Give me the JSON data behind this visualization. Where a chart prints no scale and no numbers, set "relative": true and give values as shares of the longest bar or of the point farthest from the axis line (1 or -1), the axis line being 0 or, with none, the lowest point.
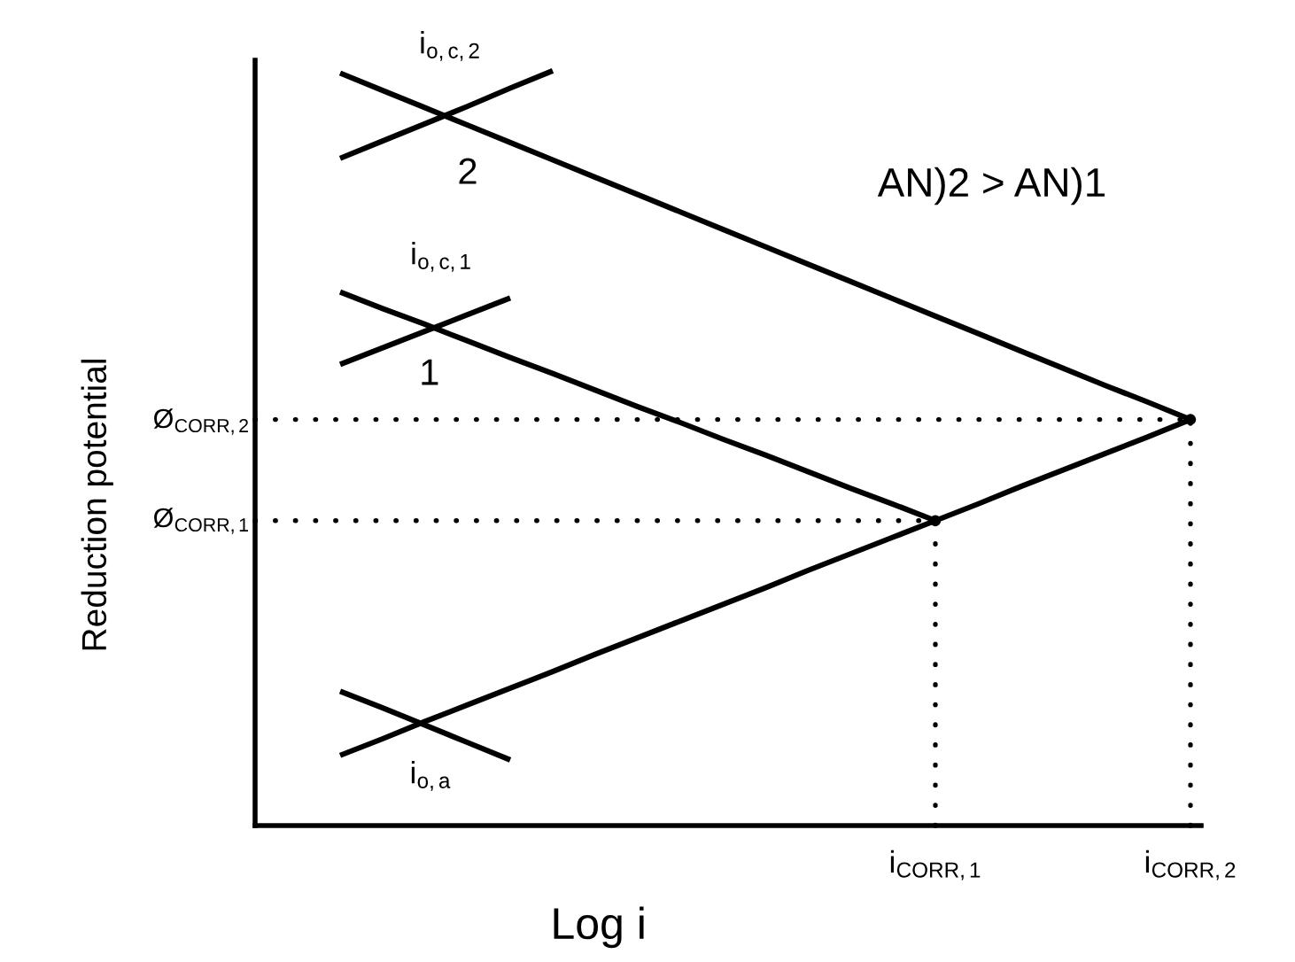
{
  "chart_data": {
    "type": "line",
    "relative": true,
    "xlabel": "Log i",
    "ylabel": "Reduction potential",
    "categories": [
      null,
      null,
      null,
      null,
      null,
      null,
      null,
      null,
      null,
      null,
      null,
      null,
      null,
      null,
      null,
      null,
      "i$_{CORR,1}$",
      null,
      null,
      null,
      null,
      null,
      "i$_{CORR,2}$"
    ],
    "series": [
      {
        "color": "#000000",
        "line_style": "solid",
        "values": [
          null,
          null,
          0.093,
          0.115,
          0.138,
          0.16,
          0.182,
          0.204,
          0.227,
          0.249,
          0.271,
          0.293,
          0.315,
          0.338,
          0.36,
          0.382,
          0.404,
          0.426,
          0.449,
          0.471,
          0.493,
          0.515,
          0.538
        ]
      },
      {
        "name": "2",
        "color": "#000000",
        "line_style": "solid",
        "values": [
          null,
          null,
          0.997,
          0.974,
          0.951,
          0.928,
          0.905,
          0.882,
          0.859,
          0.836,
          0.813,
          0.79,
          0.767,
          0.744,
          0.721,
          0.698,
          0.675,
          0.652,
          0.629,
          0.606,
          0.583,
          0.561,
          0.538
        ]
      },
      {
        "name": "1",
        "color": "#000000",
        "line_style": "solid",
        "values": [
          null,
          null,
          0.707,
          0.685,
          0.664,
          0.642,
          0.62,
          0.599,
          0.577,
          0.555,
          0.534,
          0.512,
          0.491,
          0.469,
          0.447,
          0.426,
          0.404,
          null,
          null,
          null,
          null,
          null,
          null
        ]
      },
      {
        "color": "#000000",
        "line_style": "solid",
        "values": [
          null,
          null,
          0.884,
          0.907,
          0.93,
          0.953,
          0.977,
          1.0,
          null,
          null,
          null,
          null,
          null,
          null,
          null,
          null,
          null,
          null,
          null,
          null,
          null,
          null,
          null
        ]
      },
      {
        "color": "#000000",
        "line_style": "solid",
        "values": [
          null,
          null,
          0.611,
          0.633,
          0.655,
          0.677,
          0.699,
          null,
          null,
          null,
          null,
          null,
          null,
          null,
          null,
          null,
          null,
          null,
          null,
          null,
          null,
          null,
          null
        ]
      },
      {
        "color": "#000000",
        "line_style": "solid",
        "values": [
          null,
          null,
          0.178,
          0.156,
          0.133,
          0.11,
          0.087,
          null,
          null,
          null,
          null,
          null,
          null,
          null,
          null,
          null,
          null,
          null,
          null,
          null,
          null,
          null,
          null
        ]
      },
      {
        "color": "#000000",
        "line_style": "dotted",
        "values": [
          0.538,
          0.538,
          0.538,
          0.538,
          0.538,
          0.538,
          0.538,
          0.538,
          0.538,
          0.538,
          0.538,
          0.538,
          0.538,
          0.538,
          0.538,
          0.538,
          0.538,
          0.538,
          0.538,
          0.538,
          0.538,
          0.538,
          0.538
        ]
      },
      {
        "color": "#000000",
        "line_style": "dotted",
        "values": [
          0.404,
          0.404,
          0.404,
          0.404,
          0.404,
          0.404,
          0.404,
          0.404,
          0.404,
          0.404,
          0.404,
          0.404,
          0.404,
          0.404,
          0.404,
          0.404,
          0.404,
          null,
          null,
          null,
          null,
          null,
          null
        ]
      },
      {
        "type": "lollipop",
        "marker": "circle",
        "color": "#000000",
        "line_style": "dotted",
        "values": [
          null,
          null,
          null,
          null,
          null,
          null,
          null,
          null,
          null,
          null,
          null,
          null,
          null,
          null,
          null,
          null,
          0.404,
          null,
          null,
          null,
          null,
          null,
          0.538
        ]
      }
    ],
    "annotations": [
      "i$_{o,c,2}$",
      "i$_{o,c,1}$",
      "i$_{o,a}$",
      "AN)2 > AN)1",
      "Ø$_{CORR,2}$",
      "Ø$_{CORR,1}$"
    ]
  }
}
